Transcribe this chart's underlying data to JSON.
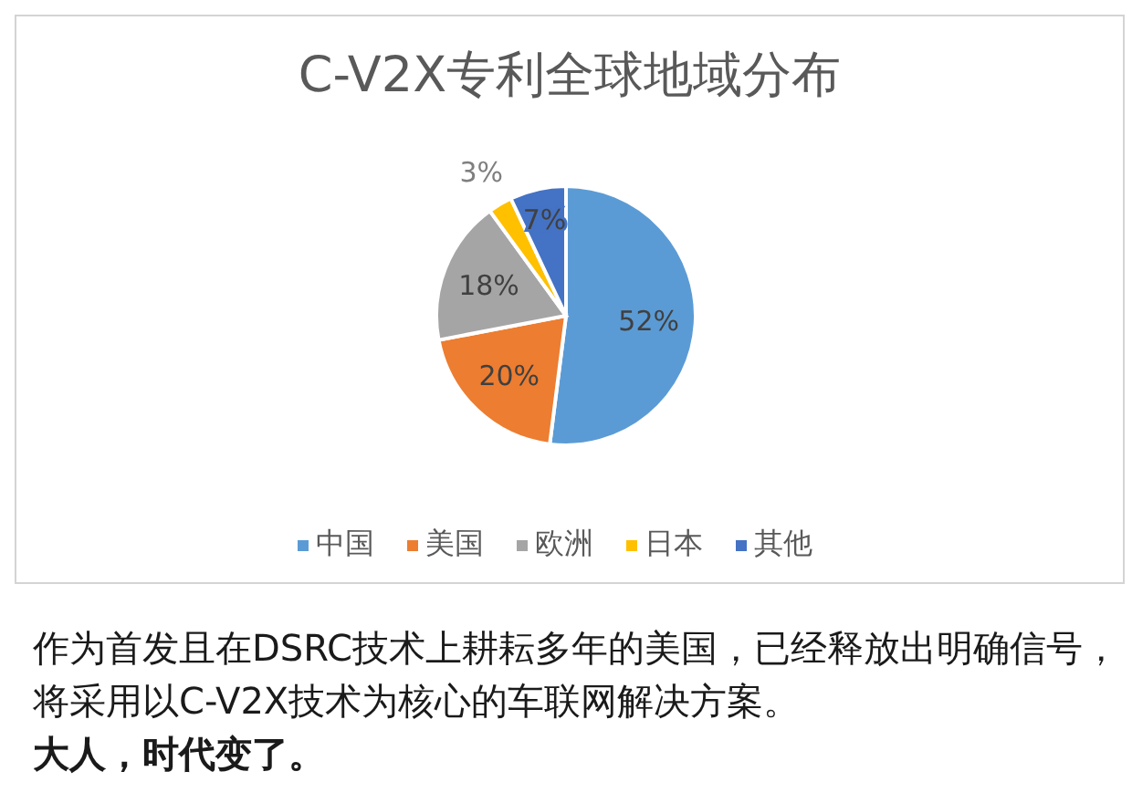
{
  "chart_data": {
    "type": "pie",
    "title": "C-V2X专利全球地域分布",
    "categories": [
      "中国",
      "美国",
      "欧洲",
      "日本",
      "其他"
    ],
    "values": [
      52,
      20,
      18,
      3,
      7
    ],
    "colors": [
      "#5b9bd5",
      "#ed7d31",
      "#a5a5a5",
      "#ffc000",
      "#4472c4"
    ],
    "value_labels": [
      "52%",
      "20%",
      "18%",
      "3%",
      "7%"
    ],
    "legend": "bottom",
    "annotations": [
      "作为首发且在DSRC技术上耕耘多年的美国，已经释放出明确信号，将采用以C-V2X技术为核心的车联网解决方案。",
      "大人，时代变了。"
    ]
  }
}
